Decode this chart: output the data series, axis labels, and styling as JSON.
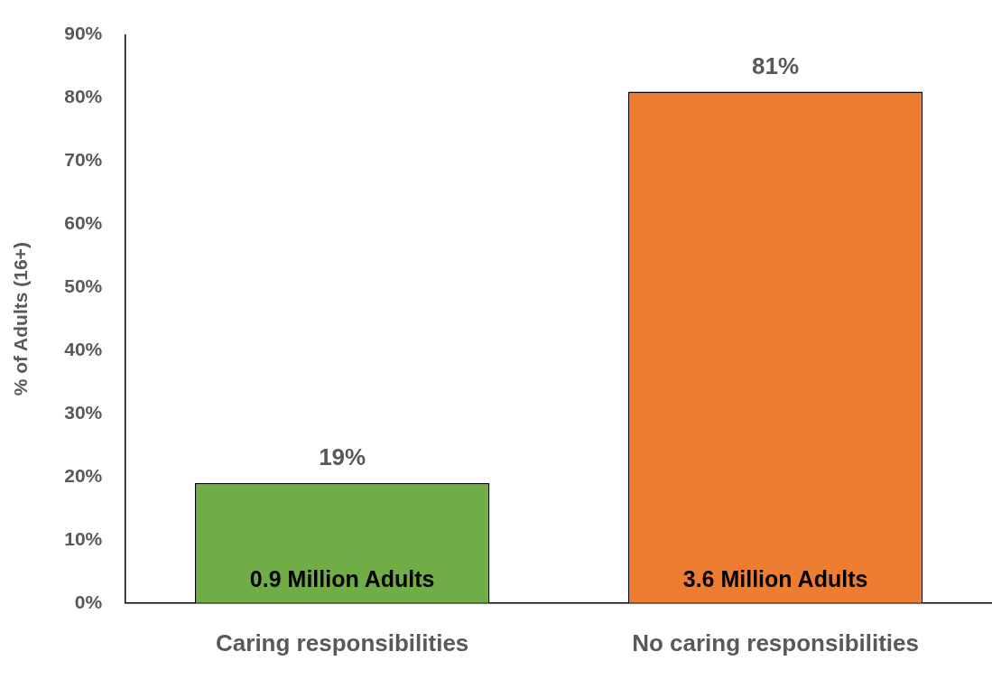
{
  "chart_data": {
    "type": "bar",
    "ylabel": "% of Adults (16+)",
    "categories": [
      "Caring responsibilities",
      "No caring responsibilities"
    ],
    "values": [
      19,
      81
    ],
    "colors": [
      "#70ad47",
      "#ed7d31"
    ],
    "value_labels": [
      "19%",
      "81%"
    ],
    "annotations": [
      {
        "text": "0.9 Million Adults",
        "x": "Caring responsibilities",
        "y": 0
      },
      {
        "text": "3.6 Million Adults",
        "x": "No caring responsibilities",
        "y": 0
      }
    ],
    "ylim": [
      0,
      90
    ],
    "yticks": [
      {
        "value": 0,
        "label": "0%"
      },
      {
        "value": 10,
        "label": "10%"
      },
      {
        "value": 20,
        "label": "20%"
      },
      {
        "value": 30,
        "label": "30%"
      },
      {
        "value": 40,
        "label": "40%"
      },
      {
        "value": 50,
        "label": "50%"
      },
      {
        "value": 60,
        "label": "60%"
      },
      {
        "value": 70,
        "label": "70%"
      },
      {
        "value": 80,
        "label": "80%"
      },
      {
        "value": 90,
        "label": "90%"
      }
    ],
    "grid": false,
    "legend": false
  }
}
